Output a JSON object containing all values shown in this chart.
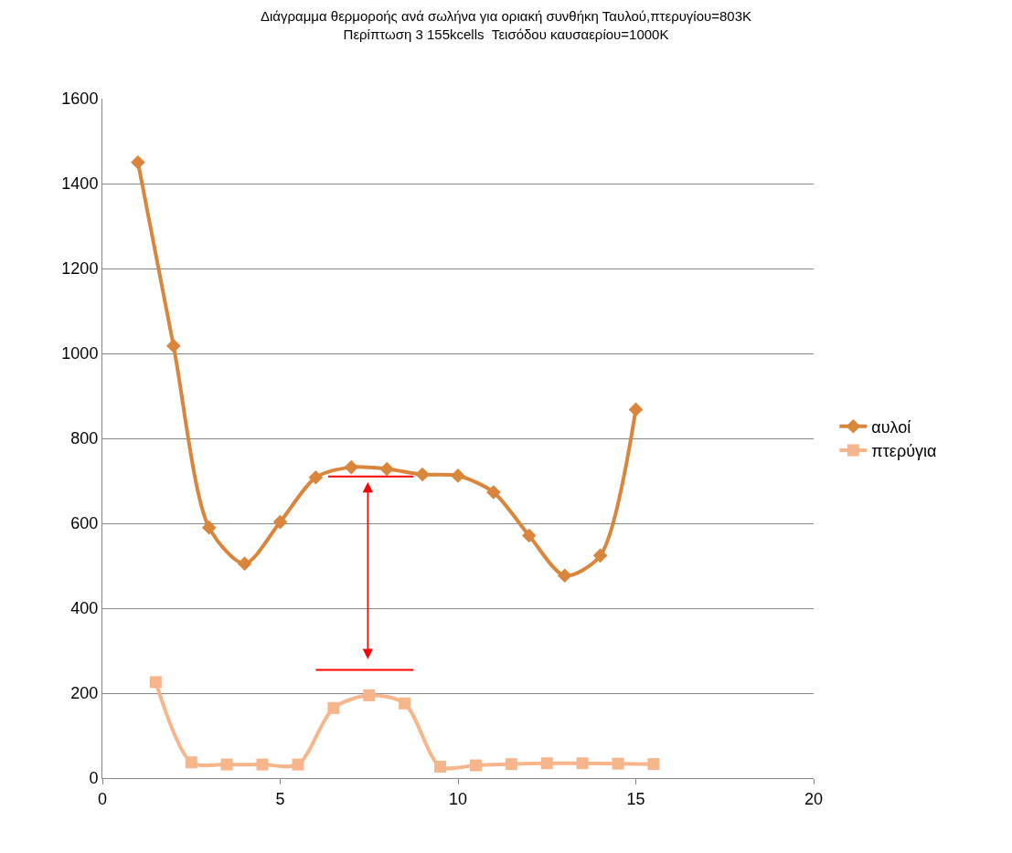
{
  "chart_data": {
    "type": "line",
    "title": "Διάγραμμα θερμοροής ανά σωλήνα για οριακή συνθήκη Ταυλού,πτερυγίου=803K",
    "subtitle": "Περίπτωση 3 155kcells  Τεισόδου καυσαερίου=1000K",
    "series": [
      {
        "name": "αυλοί",
        "color": "#d9853b",
        "marker": "diamond",
        "x": [
          1,
          2,
          3,
          4,
          5,
          6,
          7,
          8,
          9,
          10,
          11,
          12,
          13,
          14,
          15
        ],
        "values": [
          1450,
          1018,
          590,
          505,
          603,
          708,
          732,
          728,
          715,
          712,
          673,
          571,
          477,
          524,
          868
        ]
      },
      {
        "name": "πτερύγια",
        "color": "#f7b58c",
        "marker": "square",
        "x": [
          1.5,
          2.5,
          3.5,
          4.5,
          5.5,
          6.5,
          7.5,
          8.5,
          9.5,
          10.5,
          11.5,
          12.5,
          13.5,
          14.5,
          15.5
        ],
        "values": [
          226,
          37,
          32,
          32,
          32,
          165,
          195,
          176,
          27,
          30,
          33,
          35,
          35,
          34,
          33
        ]
      },
      {
        "color": "#ff0000",
        "marker": "none",
        "x": [
          6.35,
          8.75
        ],
        "values": [
          710,
          710
        ]
      },
      {
        "color": "#ff0000",
        "marker": "none",
        "x": [
          6.0,
          8.75
        ],
        "values": [
          255,
          255
        ]
      }
    ],
    "xlim": [
      0,
      20
    ],
    "xticks": [
      0,
      5,
      10,
      15,
      20
    ],
    "ylim": [
      0,
      1600
    ],
    "yticks": [
      0,
      200,
      400,
      600,
      800,
      1000,
      1200,
      1400,
      1600
    ],
    "grid": "y",
    "legend": "right"
  }
}
